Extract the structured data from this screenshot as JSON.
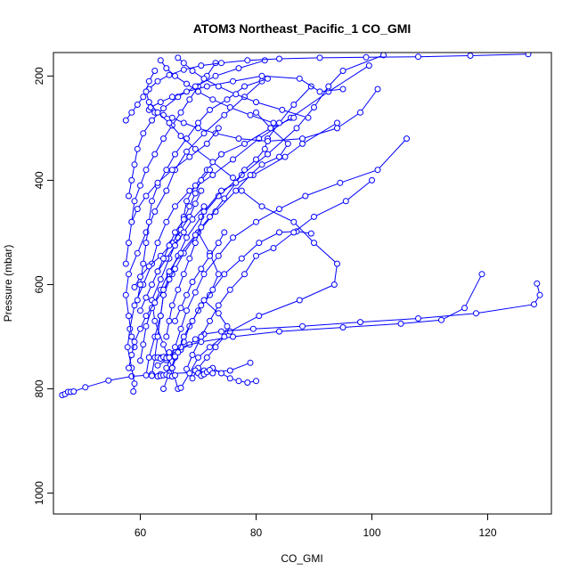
{
  "chart_data": {
    "type": "line",
    "title": "ATOM3 Northeast_Pacific_1 CO_GMI",
    "xlabel": "CO_GMI",
    "ylabel": "Pressure (mbar)",
    "xlim": [
      45,
      131
    ],
    "ylim": [
      1040,
      155
    ],
    "y_reversed": true,
    "xticks": [
      60,
      80,
      100,
      120
    ],
    "yticks": [
      200,
      400,
      600,
      800,
      1000
    ],
    "grid": false,
    "legend": "none",
    "series_color": "#0000ff",
    "marker": "open-circle",
    "series": [
      {
        "x": [
          46.5,
          47.0,
          47.5,
          48.0,
          48.5,
          50.5,
          54.5,
          58.5,
          63.5,
          70.0,
          75.5,
          79.0
        ],
        "y": [
          812,
          810,
          806,
          806,
          805,
          797,
          784,
          776,
          772,
          768,
          765,
          750
        ]
      },
      {
        "x": [
          58.8,
          59.0,
          58.5,
          57.8,
          58.2,
          59.0,
          60.5,
          62.0,
          63.0,
          64.5,
          66.0,
          68.5,
          72.5,
          76.0,
          80.5,
          86.0,
          92.5,
          99.5
        ],
        "y": [
          805,
          790,
          760,
          720,
          685,
          640,
          600,
          560,
          520,
          480,
          450,
          420,
          390,
          360,
          320,
          280,
          230,
          180
        ]
      },
      {
        "x": [
          61.0,
          61.5,
          62.5,
          63.5,
          64.0,
          65.0,
          66.5,
          68.0,
          70.5,
          73.5,
          77.5,
          82.0,
          87.0,
          90.0,
          92.5,
          95.0,
          102.0
        ],
        "y": [
          774,
          740,
          700,
          660,
          620,
          580,
          545,
          510,
          470,
          430,
          390,
          350,
          300,
          260,
          220,
          190,
          160
        ]
      },
      {
        "x": [
          64.0,
          65.0,
          66.0,
          67.5,
          68.5,
          70.0,
          72.0,
          73.5,
          72.0,
          70.0,
          71.0,
          74.0,
          79.5,
          85.0,
          88.0,
          94.0
        ],
        "y": [
          800,
          770,
          740,
          710,
          680,
          650,
          620,
          580,
          540,
          500,
          460,
          420,
          390,
          355,
          330,
          290
        ]
      },
      {
        "x": [
          66.5,
          65.5,
          64.0,
          62.5,
          62.0,
          63.5,
          65.0,
          66.5,
          67.5,
          68.0,
          69.5,
          71.5,
          74.0,
          78.0,
          82.5,
          86.5
        ],
        "y": [
          800,
          760,
          715,
          670,
          630,
          590,
          550,
          510,
          470,
          440,
          410,
          380,
          350,
          330,
          300,
          280
        ]
      },
      {
        "x": [
          67.0,
          68.5,
          70.0,
          72.0,
          75.5,
          80.5,
          87.5,
          93.5,
          94.0,
          90.0,
          86.5,
          81.0,
          77.5
        ],
        "y": [
          798,
          770,
          740,
          720,
          690,
          660,
          630,
          600,
          560,
          520,
          480,
          450,
          420
        ]
      },
      {
        "x": [
          59.0,
          58.5,
          58.0,
          57.5,
          58.0,
          59.5,
          61.0,
          62.5,
          64.5,
          66.0,
          68.0,
          71.0,
          74.5,
          78.0,
          81.0
        ],
        "y": [
          720,
          700,
          660,
          620,
          580,
          540,
          500,
          460,
          420,
          380,
          345,
          310,
          275,
          240,
          210
        ]
      },
      {
        "x": [
          63.0,
          64.5,
          66.0,
          67.0,
          68.5,
          69.5,
          71.0,
          74.0,
          79.5,
          88.0,
          98.0,
          108.0,
          118.0,
          128.0,
          129.0,
          128.5
        ],
        "y": [
          755,
          745,
          735,
          725,
          715,
          705,
          695,
          690,
          685,
          680,
          672,
          665,
          655,
          638,
          620,
          598
        ]
      },
      {
        "x": [
          63.5,
          65.0,
          67.0,
          70.5,
          76.0,
          84.0,
          95.0,
          105.0,
          112.0,
          116.0,
          119.0
        ],
        "y": [
          740,
          730,
          720,
          710,
          700,
          690,
          682,
          675,
          668,
          645,
          580
        ]
      },
      {
        "x": [
          65.5,
          66.5,
          67.5,
          69.0,
          70.5,
          72.5,
          74.5,
          77.5,
          80.5,
          84.0,
          87.0,
          89.5
        ],
        "y": [
          760,
          730,
          700,
          670,
          640,
          610,
          580,
          550,
          520,
          500,
          498,
          502
        ]
      },
      {
        "x": [
          62.0,
          62.5,
          63.0,
          63.5,
          64.0,
          65.5,
          67.5,
          70.0,
          73.0,
          76.5,
          79.0,
          81.0,
          84.0,
          85.5,
          82.5,
          80.0
        ],
        "y": [
          772,
          740,
          700,
          660,
          620,
          580,
          540,
          500,
          460,
          420,
          390,
          370,
          355,
          330,
          300,
          270
        ]
      },
      {
        "x": [
          68.0,
          69.0,
          70.5,
          72.0,
          73.5,
          75.5,
          78.0,
          80.0,
          83.0,
          86.5,
          90.0,
          95.5,
          100.0
        ],
        "y": [
          762,
          735,
          700,
          670,
          640,
          610,
          580,
          545,
          530,
          500,
          470,
          440,
          400
        ]
      },
      {
        "x": [
          60.0,
          60.5,
          61.0,
          62.0,
          63.5,
          65.0,
          67.0,
          69.5,
          72.0,
          74.5,
          76.5,
          78.0,
          80.0,
          81.5,
          82.0,
          84.0,
          86.5,
          89.5
        ],
        "y": [
          746,
          715,
          680,
          645,
          610,
          575,
          540,
          505,
          470,
          435,
          405,
          380,
          360,
          340,
          320,
          290,
          255,
          220
        ]
      },
      {
        "x": [
          64.5,
          66.0,
          67.0,
          68.0,
          69.5,
          71.0,
          73.5,
          76.0,
          80.0,
          84.0,
          88.5,
          94.5,
          101.0,
          106.0
        ],
        "y": [
          760,
          720,
          685,
          650,
          615,
          580,
          545,
          510,
          480,
          455,
          430,
          405,
          380,
          320
        ]
      },
      {
        "x": [
          59.5,
          60.0,
          60.5,
          61.0,
          61.5,
          62.0,
          63.0,
          64.5,
          66.0,
          68.0,
          70.0,
          72.0,
          75.0,
          78.0,
          82.0
        ],
        "y": [
          630,
          600,
          560,
          520,
          480,
          440,
          410,
          380,
          350,
          320,
          290,
          265,
          245,
          220,
          205
        ]
      },
      {
        "x": [
          57.5,
          58.0,
          58.5,
          59.0,
          60.0,
          61.0,
          62.5,
          64.0,
          65.5,
          67.0,
          68.5,
          70.0,
          71.5,
          73.0
        ],
        "y": [
          560,
          520,
          480,
          440,
          410,
          380,
          350,
          320,
          295,
          270,
          245,
          220,
          200,
          175
        ]
      },
      {
        "x": [
          58.0,
          58.5,
          59.0,
          59.5,
          60.5,
          62.0,
          64.0,
          66.5,
          69.5,
          73.0,
          77.0,
          81.5
        ],
        "y": [
          430,
          400,
          370,
          340,
          310,
          285,
          262,
          240,
          220,
          200,
          185,
          170
        ]
      },
      {
        "x": [
          61.5,
          62.5,
          64.0,
          65.5,
          67.5,
          70.0,
          73.0,
          77.0,
          82.0,
          88.0,
          94.0,
          98.0,
          101.0
        ],
        "y": [
          265,
          270,
          275,
          280,
          290,
          300,
          310,
          320,
          325,
          320,
          300,
          270,
          225
        ]
      },
      {
        "x": [
          61.8,
          63.5,
          65.5,
          68.0,
          71.5,
          76.0,
          81.0,
          87.5,
          91.0,
          95.0
        ],
        "y": [
          260,
          250,
          240,
          230,
          220,
          210,
          200,
          205,
          230,
          225
        ]
      },
      {
        "x": [
          57.5,
          58.5,
          59.5,
          60.5,
          61.5,
          63.0,
          65.0,
          67.5,
          70.5,
          74.0,
          78.5,
          84.0,
          91.0,
          99.0,
          108.0,
          117.0,
          127.0
        ],
        "y": [
          285,
          270,
          255,
          240,
          225,
          210,
          198,
          188,
          180,
          175,
          170,
          167,
          165,
          164,
          163,
          161,
          158
        ]
      },
      {
        "x": [
          62.5,
          61.5,
          61.0,
          61.5,
          63.0,
          65.0,
          67.0,
          69.5,
          72.5,
          76.0
        ],
        "y": [
          190,
          210,
          230,
          250,
          270,
          290,
          315,
          340,
          365,
          395
        ]
      },
      {
        "x": [
          63.5,
          64.5,
          66.0,
          68.0,
          70.0,
          72.5,
          75.5,
          79.0,
          83.0
        ],
        "y": [
          170,
          185,
          200,
          215,
          230,
          245,
          260,
          275,
          290
        ]
      },
      {
        "x": [
          66.5,
          67.5,
          69.0,
          71.0,
          73.5,
          76.5,
          80.0,
          84.5,
          89.0
        ],
        "y": [
          165,
          175,
          190,
          205,
          220,
          235,
          250,
          265,
          280
        ]
      },
      {
        "x": [
          58.5,
          59.5,
          61.0,
          63.0,
          65.5,
          68.5,
          71.5,
          73.5
        ],
        "y": [
          480,
          455,
          430,
          405,
          380,
          355,
          330,
          300
        ]
      },
      {
        "x": [
          59.0,
          60.0,
          61.5,
          63.5,
          65.5,
          67.0,
          68.5,
          69.5,
          70.5
        ],
        "y": [
          605,
          585,
          565,
          545,
          520,
          495,
          470,
          445,
          420
        ]
      },
      {
        "x": [
          58.0,
          58.5,
          59.0,
          60.0,
          61.0,
          62.5,
          64.0,
          65.0,
          66.0
        ],
        "y": [
          760,
          735,
          710,
          685,
          660,
          635,
          610,
          590,
          570
        ]
      },
      {
        "x": [
          60.0,
          61.0,
          62.0,
          63.0,
          64.5,
          66.0,
          67.5,
          69.0,
          71.0
        ],
        "y": [
          650,
          625,
          600,
          575,
          550,
          525,
          500,
          475,
          450
        ]
      },
      {
        "x": [
          63.0,
          64.0,
          65.0,
          66.0,
          67.5,
          68.5,
          69.5,
          70.5,
          72.0
        ],
        "y": [
          575,
          550,
          525,
          500,
          475,
          450,
          425,
          400,
          380
        ]
      },
      {
        "x": [
          64.5,
          65.0,
          65.5,
          66.5,
          67.5,
          68.5,
          69.5,
          70.5
        ],
        "y": [
          700,
          670,
          640,
          610,
          580,
          550,
          520,
          490
        ]
      },
      {
        "x": [
          66.0,
          67.0,
          68.0,
          69.0,
          70.5,
          72.0,
          73.5,
          74.5
        ],
        "y": [
          670,
          645,
          620,
          595,
          570,
          545,
          520,
          500
        ]
      },
      {
        "x": [
          69.0,
          70.0,
          71.5,
          73.0,
          74.5,
          75.0,
          73.5,
          71.0
        ],
        "y": [
          780,
          760,
          740,
          720,
          700,
          680,
          655,
          630
        ]
      },
      {
        "x": [
          71.0,
          72.5,
          74.0,
          75.5,
          77.0,
          78.5,
          80.0
        ],
        "y": [
          765,
          760,
          770,
          780,
          785,
          788,
          785
        ]
      },
      {
        "x": [
          62.0,
          63.0,
          63.5,
          64.0,
          64.5,
          65.0,
          65.5,
          66.0
        ],
        "y": [
          775,
          776,
          775,
          774,
          773,
          775,
          776,
          774
        ]
      },
      {
        "x": [
          63.0,
          63.5,
          64.0,
          64.5,
          65.0,
          66.0
        ],
        "y": [
          740,
          742,
          739,
          741,
          740,
          738
        ]
      },
      {
        "x": [
          69.5,
          70.0,
          70.5,
          71.0,
          71.5,
          72.0,
          72.5
        ],
        "y": [
          765,
          770,
          775,
          772,
          768,
          764,
          770
        ]
      }
    ]
  }
}
